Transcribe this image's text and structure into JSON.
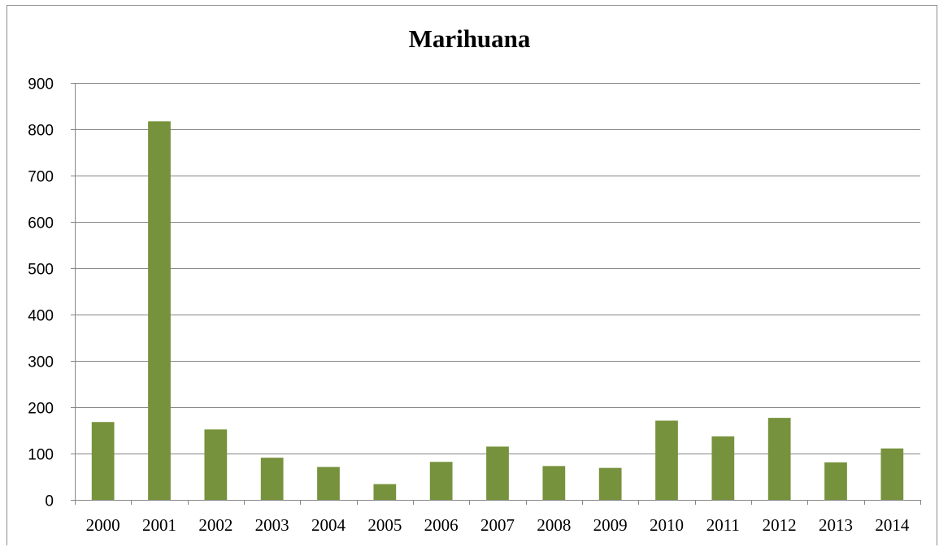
{
  "colors": {
    "bar": "#76923c",
    "gridline": "#868686",
    "axis": "#868686",
    "frame": "#8c8c8c"
  },
  "chart_data": {
    "type": "bar",
    "title": "Marihuana",
    "xlabel": "",
    "ylabel": "",
    "grid": true,
    "legend": "none",
    "ylim": [
      0,
      900
    ],
    "yticks": [
      0,
      100,
      200,
      300,
      400,
      500,
      600,
      700,
      800,
      900
    ],
    "categories": [
      "2000",
      "2001",
      "2002",
      "2003",
      "2004",
      "2005",
      "2006",
      "2007",
      "2008",
      "2009",
      "2010",
      "2011",
      "2012",
      "2013",
      "2014"
    ],
    "values": [
      168,
      817,
      152,
      91,
      71,
      34,
      82,
      115,
      73,
      69,
      171,
      137,
      177,
      81,
      111
    ]
  }
}
